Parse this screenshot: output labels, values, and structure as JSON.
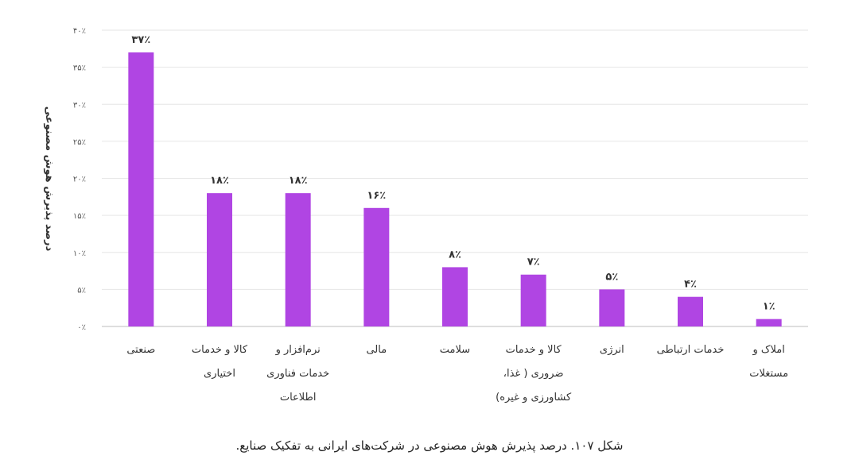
{
  "chart_data": {
    "type": "bar",
    "categories": [
      [
        "صنعتی"
      ],
      [
        "کالا و خدمات",
        "اختیاری"
      ],
      [
        "نرم‌افزار و",
        "خدمات فناوری",
        "اطلاعات"
      ],
      [
        "مالی"
      ],
      [
        "سلامت"
      ],
      [
        "کالا و خدمات",
        "ضروری ( غذا،",
        "کشاورزی و غیره)"
      ],
      [
        "انرژی"
      ],
      [
        "خدمات ارتباطی"
      ],
      [
        "املاک و",
        "مستغلات"
      ]
    ],
    "values": [
      37,
      18,
      18,
      16,
      8,
      7,
      5,
      4,
      1
    ],
    "value_labels": [
      "۳۷٪",
      "۱۸٪",
      "۱۸٪",
      "۱۶٪",
      "۸٪",
      "۷٪",
      "۵٪",
      "۴٪",
      "۱٪"
    ],
    "y_ticks": [
      0,
      5,
      10,
      15,
      20,
      25,
      30,
      35,
      40
    ],
    "y_tick_labels": [
      "۰٪",
      "۵٪",
      "۱۰٪",
      "۱۵٪",
      "۲۰٪",
      "۲۵٪",
      "۳۰٪",
      "۳۵٪",
      "۴۰٪"
    ],
    "ylim": [
      0,
      40
    ],
    "ylabel": "درصد پذیرش هوش مصنوعی",
    "xlabel": "",
    "grid": true,
    "bar_color": "#b045e3",
    "caption": "شکل ۱۰۷. درصد پذیرش هوش مصنوعی در شرکت‌های ایرانی به تفکیک صنایع."
  }
}
